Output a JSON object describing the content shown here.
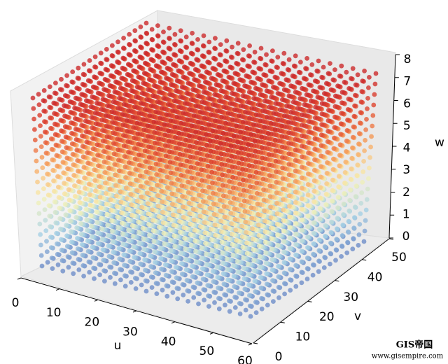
{
  "chart_data": {
    "type": "scatter3d",
    "xlabel": "u",
    "ylabel": "v",
    "zlabel": "w",
    "x": [
      0,
      3,
      6,
      9,
      12,
      15,
      18,
      21,
      24,
      27,
      30,
      33,
      36,
      39,
      42,
      45,
      48,
      51,
      54,
      57,
      60
    ],
    "y": [
      0,
      2.5,
      5,
      7.5,
      10,
      12.5,
      15,
      17.5,
      20,
      22.5,
      25,
      27.5,
      30,
      32.5,
      35,
      37.5,
      40,
      42.5,
      45,
      47.5,
      50
    ],
    "z": [
      0,
      0.5,
      1,
      1.5,
      2,
      2.5,
      3,
      3.5,
      4,
      4.5,
      5,
      5.5,
      6,
      6.5,
      7,
      7.5,
      8
    ],
    "xlim": [
      0,
      60
    ],
    "ylim": [
      0,
      50
    ],
    "zlim": [
      0,
      8
    ],
    "xticks": [
      0,
      10,
      20,
      30,
      40,
      50,
      60
    ],
    "yticks": [
      0,
      10,
      20,
      30,
      40,
      50
    ],
    "zticks": [
      0,
      1,
      2,
      3,
      4,
      5,
      6,
      7,
      8
    ],
    "color_by": "z",
    "colormap": [
      "#6f8fc9",
      "#a9d3e6",
      "#f7f3b4",
      "#f7a35c",
      "#e0482f",
      "#cc2a2c"
    ],
    "watermark": [
      "GIS帝国",
      "www.gisempire.com"
    ]
  }
}
